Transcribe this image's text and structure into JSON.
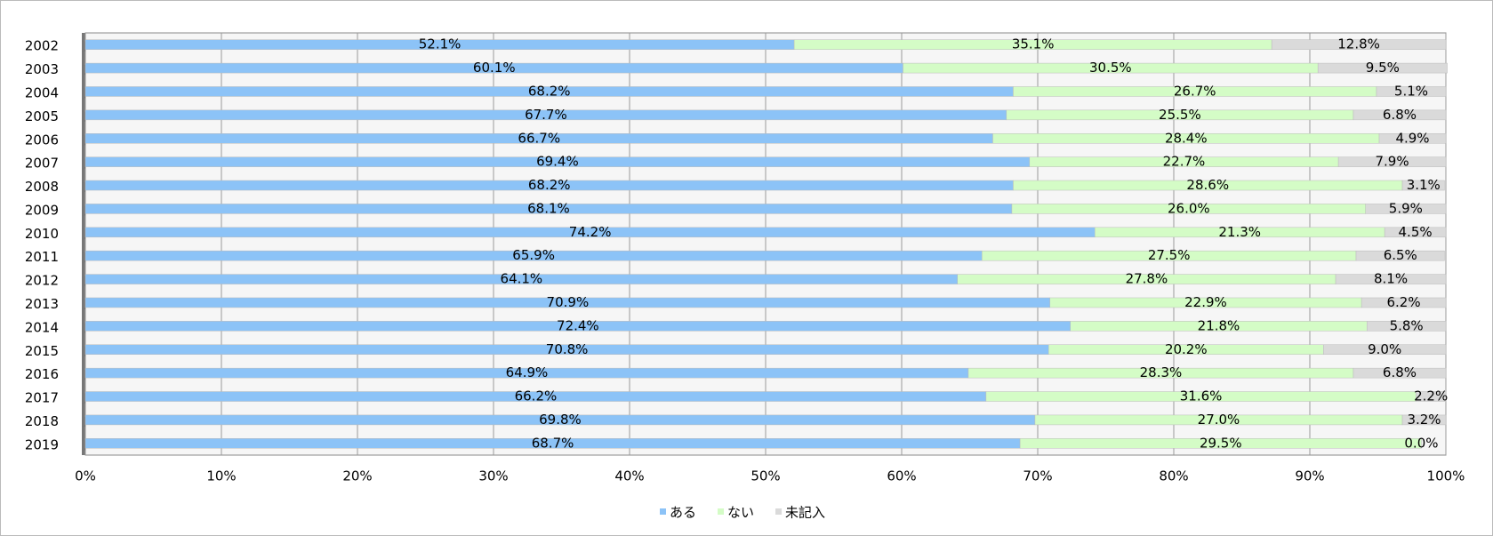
{
  "chart_data": {
    "type": "stacked-bar-horizontal",
    "categories": [
      "2002",
      "2003",
      "2004",
      "2005",
      "2006",
      "2007",
      "2008",
      "2009",
      "2010",
      "2011",
      "2012",
      "2013",
      "2014",
      "2015",
      "2016",
      "2017",
      "2018",
      "2019"
    ],
    "series": [
      {
        "name": "ある",
        "color": "#8cc3f7",
        "values": [
          52.1,
          60.1,
          68.2,
          67.7,
          66.7,
          69.4,
          68.2,
          68.1,
          74.2,
          65.9,
          64.1,
          70.9,
          72.4,
          70.8,
          64.9,
          66.2,
          69.8,
          68.7
        ],
        "value_labels": [
          "52.1%",
          "60.1%",
          "68.2%",
          "67.7%",
          "66.7%",
          "69.4%",
          "68.2%",
          "68.1%",
          "74.2%",
          "65.9%",
          "64.1%",
          "70.9%",
          "72.4%",
          "70.8%",
          "64.9%",
          "66.2%",
          "69.8%",
          "68.7%"
        ]
      },
      {
        "name": "ない",
        "color": "#d4fcc6",
        "values": [
          35.1,
          30.5,
          26.7,
          25.5,
          28.4,
          22.7,
          28.6,
          26,
          21.3,
          27.5,
          27.8,
          22.9,
          21.8,
          20.2,
          28.3,
          31.6,
          27,
          29.5
        ],
        "value_labels": [
          "35.1%",
          "30.5%",
          "26.7%",
          "25.5%",
          "28.4%",
          "22.7%",
          "28.6%",
          "26.0%",
          "21.3%",
          "27.5%",
          "27.8%",
          "22.9%",
          "21.8%",
          "20.2%",
          "28.3%",
          "31.6%",
          "27.0%",
          "29.5%"
        ]
      },
      {
        "name": "未記入",
        "color": "#dadada",
        "values": [
          12.8,
          9.5,
          5.1,
          6.8,
          4.9,
          7.9,
          3.1,
          5.9,
          4.5,
          6.5,
          8.1,
          6.2,
          5.8,
          9,
          6.8,
          2.2,
          3.2,
          0
        ],
        "value_labels": [
          "12.8%",
          "9.5%",
          "5.1%",
          "6.8%",
          "4.9%",
          "7.9%",
          "3.1%",
          "5.9%",
          "4.5%",
          "6.5%",
          "8.1%",
          "6.2%",
          "5.8%",
          "9.0%",
          "6.8%",
          "2.2%",
          "3.2%",
          "0.0%"
        ]
      }
    ],
    "xlim": [
      0,
      100
    ],
    "xticks": [
      {
        "value": 0,
        "label": "0%"
      },
      {
        "value": 10,
        "label": "10%"
      },
      {
        "value": 20,
        "label": "20%"
      },
      {
        "value": 30,
        "label": "30%"
      },
      {
        "value": 40,
        "label": "40%"
      },
      {
        "value": 50,
        "label": "50%"
      },
      {
        "value": 60,
        "label": "60%"
      },
      {
        "value": 70,
        "label": "70%"
      },
      {
        "value": 80,
        "label": "80%"
      },
      {
        "value": 90,
        "label": "90%"
      },
      {
        "value": 100,
        "label": "100%"
      }
    ],
    "grid": true,
    "legend": "bottom"
  }
}
